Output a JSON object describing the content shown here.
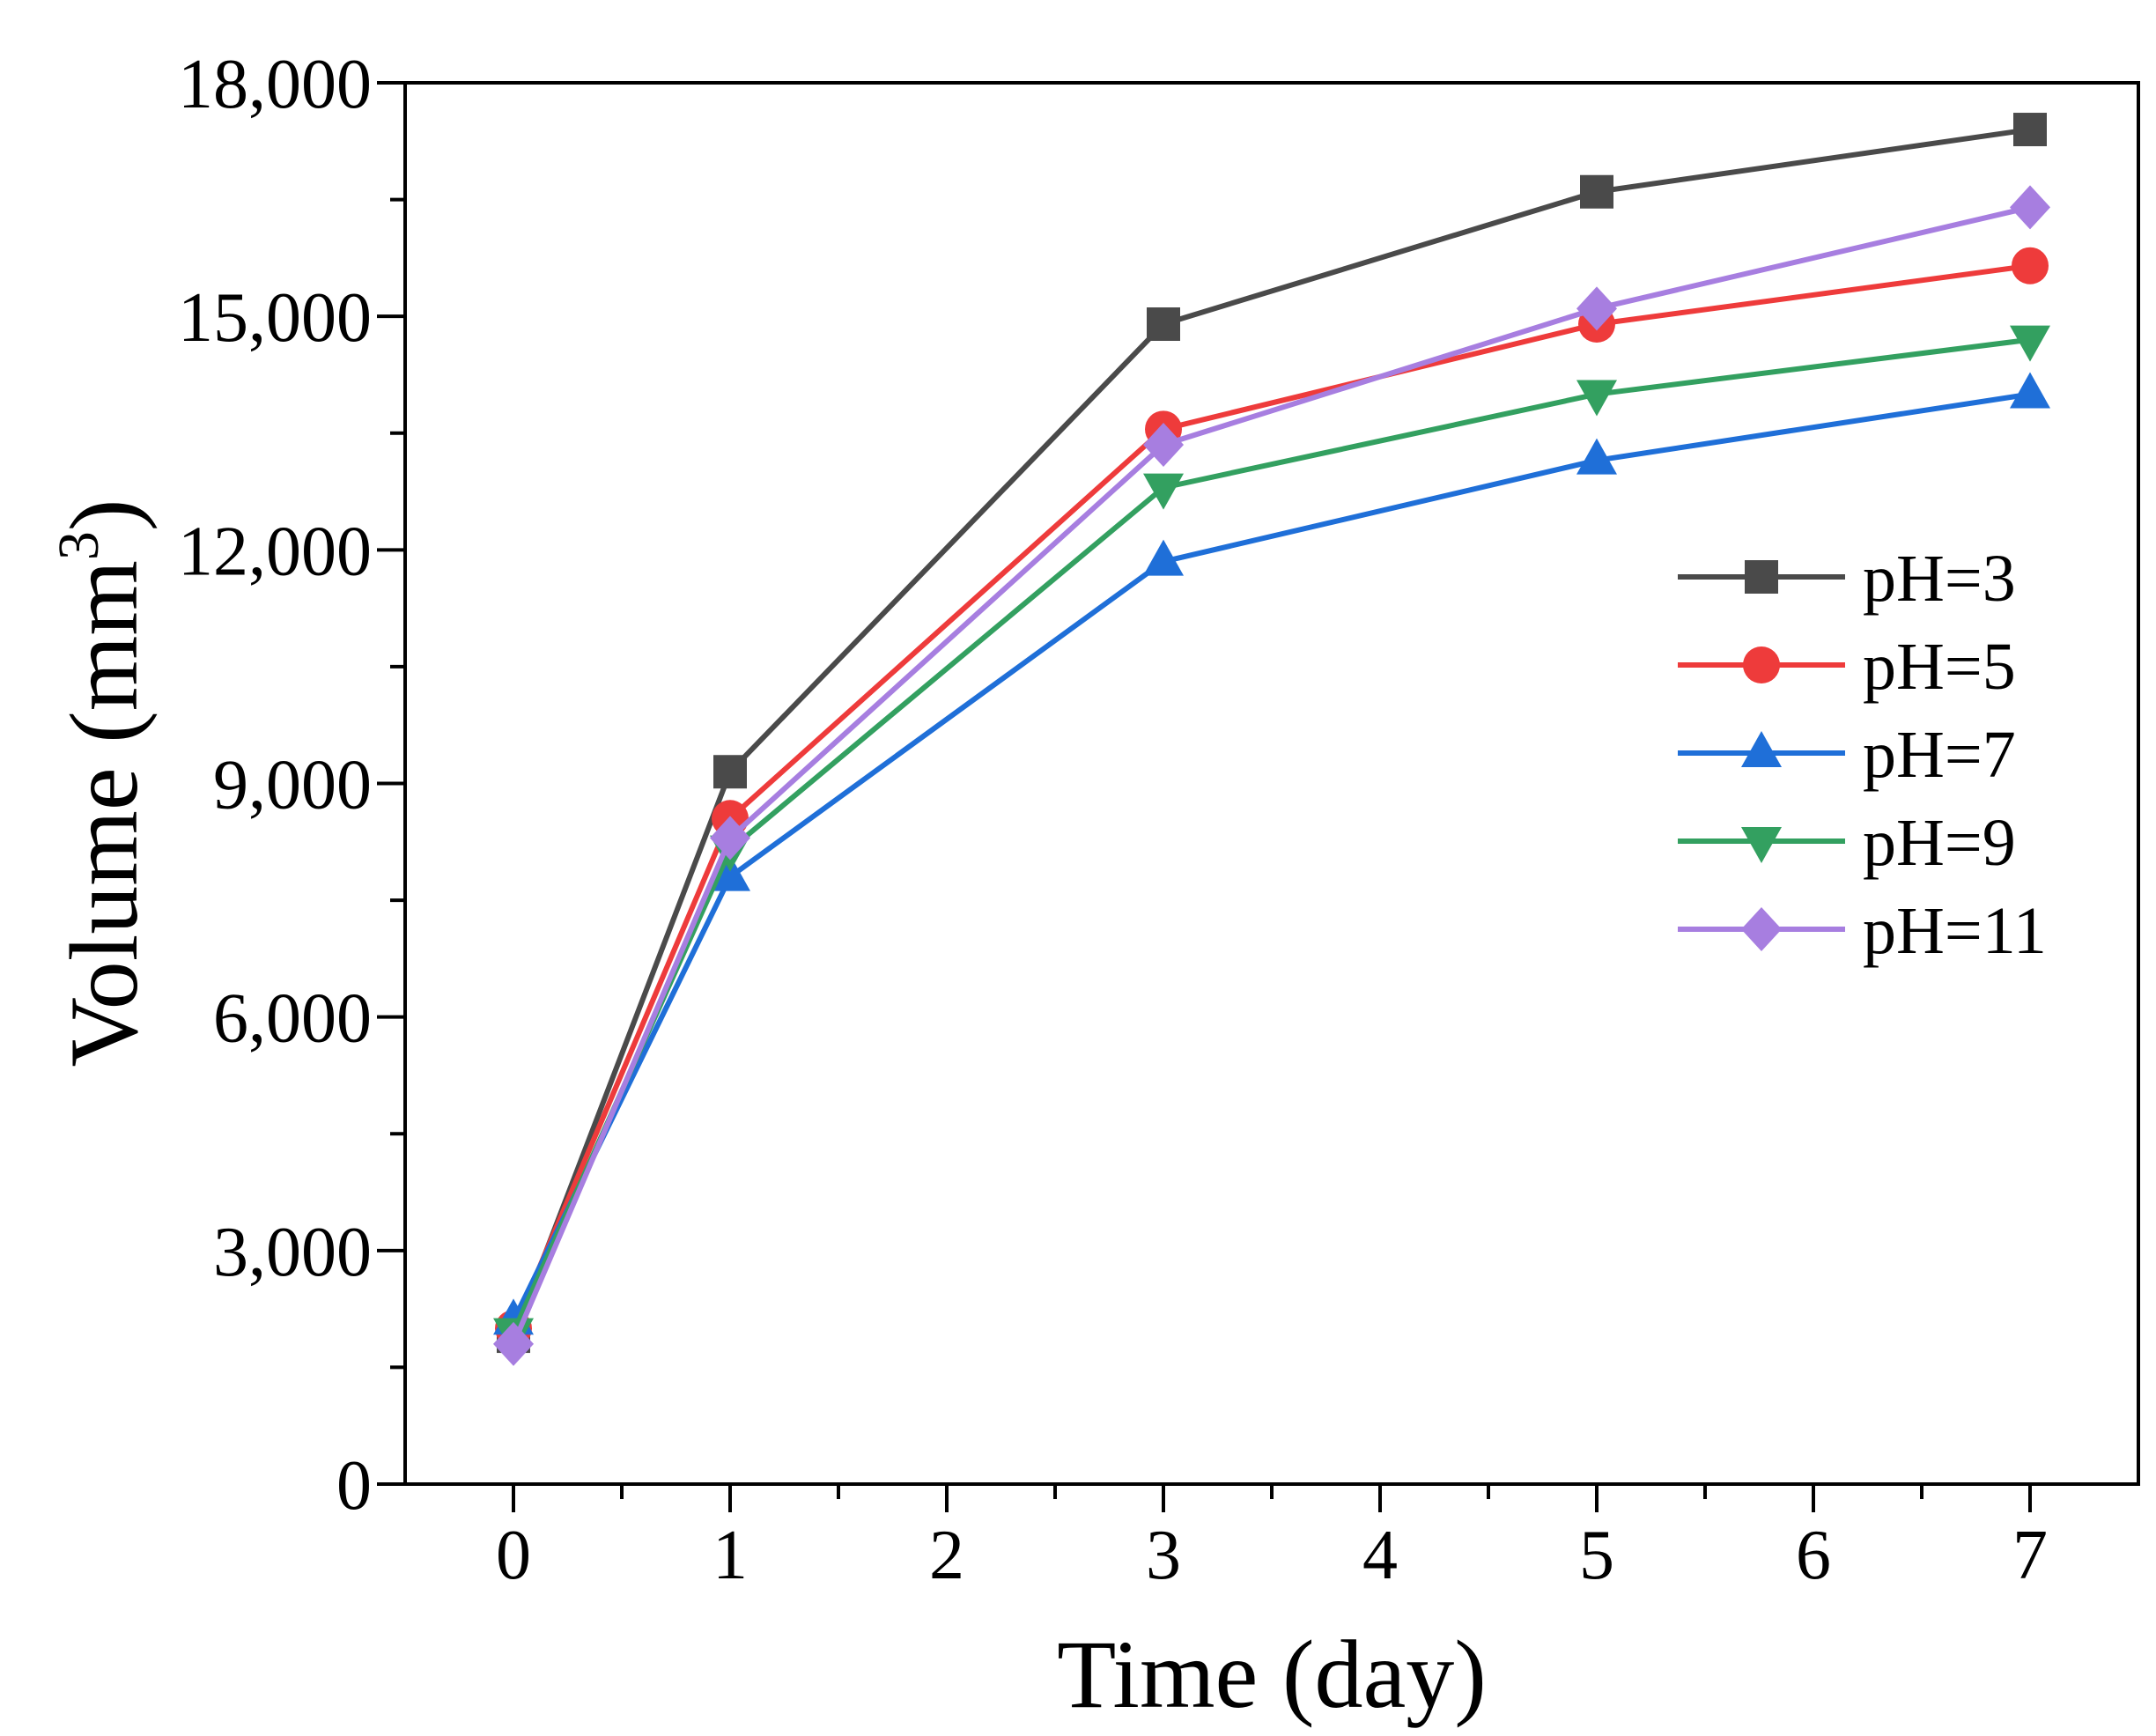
{
  "chart_data": {
    "type": "line",
    "title": "",
    "xlabel": "Time (day)",
    "ylabel": "Volume (mm",
    "ylabel_sup": "3",
    "ylabel_close": ")",
    "xlim": [
      -0.5,
      7.5
    ],
    "ylim": [
      0,
      18000
    ],
    "x_ticks": [
      0,
      1,
      2,
      3,
      4,
      5,
      6,
      7
    ],
    "x_tick_labels": [
      "0",
      "1",
      "2",
      "3",
      "4",
      "5",
      "6",
      "7"
    ],
    "y_ticks": [
      0,
      3000,
      6000,
      9000,
      12000,
      15000,
      18000
    ],
    "y_tick_labels": [
      "0",
      "3,000",
      "6,000",
      "9,000",
      "12,000",
      "15,000",
      "18,000"
    ],
    "x": [
      0,
      1,
      3,
      5,
      7
    ],
    "legend_position": "right-middle",
    "grid": false,
    "series": [
      {
        "name": "pH=3",
        "color": "#4a4a4a",
        "marker": "square",
        "values": [
          1900,
          9150,
          14900,
          16600,
          17400
        ]
      },
      {
        "name": "pH=5",
        "color": "#ee3b3b",
        "marker": "circle",
        "values": [
          2000,
          8550,
          13550,
          14900,
          15650
        ]
      },
      {
        "name": "pH=7",
        "color": "#1f6fd8",
        "marker": "triangle-up",
        "values": [
          2100,
          7800,
          11850,
          13150,
          14000
        ]
      },
      {
        "name": "pH=9",
        "color": "#33a060",
        "marker": "triangle-down",
        "values": [
          1950,
          8150,
          12800,
          14000,
          14700
        ]
      },
      {
        "name": "pH=11",
        "color": "#a77ee0",
        "marker": "diamond",
        "values": [
          1800,
          8300,
          13350,
          15100,
          16400
        ]
      }
    ]
  }
}
